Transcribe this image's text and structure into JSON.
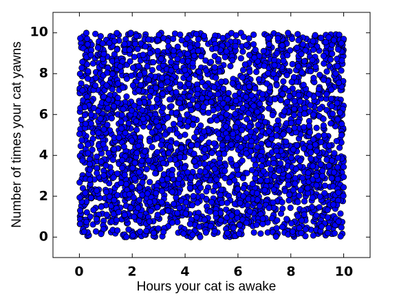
{
  "chart_data": {
    "type": "scatter",
    "title": "",
    "xlabel": "Hours your cat is awake",
    "ylabel": "Number of times your cat yawns",
    "xlim": [
      -1,
      11
    ],
    "ylim": [
      -1,
      11
    ],
    "x_ticks": [
      "0",
      "2",
      "4",
      "6",
      "8",
      "10"
    ],
    "y_ticks": [
      "0",
      "2",
      "4",
      "6",
      "8",
      "10"
    ],
    "grid": false,
    "legend": "none",
    "marker_color": "#0000ff",
    "marker_edge_color": "#000000",
    "point_count": 3000,
    "point_distribution": "uniform random on [0, 10] x [0, 10]"
  }
}
